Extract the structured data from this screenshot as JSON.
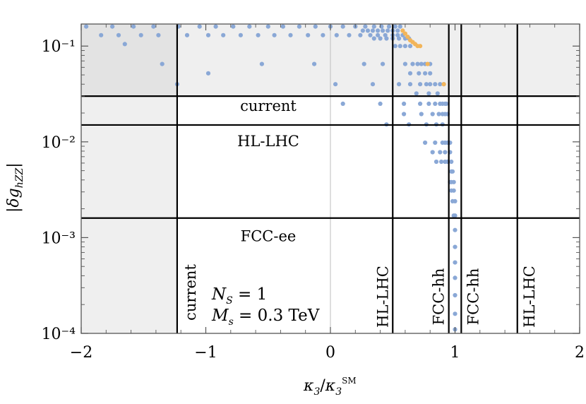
{
  "chart_data": {
    "type": "scatter",
    "xlabel": "κ₃/κ₃^SM",
    "ylabel": "|δg_hZZ|",
    "xlim": [
      -2,
      2
    ],
    "ylim": [
      0.0001,
      0.17
    ],
    "yscale": "log",
    "x_ticks": [
      {
        "value": -2,
        "label": "−2"
      },
      {
        "value": -1,
        "label": "−1"
      },
      {
        "value": 0,
        "label": "0"
      },
      {
        "value": 1,
        "label": "1"
      },
      {
        "value": 2,
        "label": "2"
      }
    ],
    "y_ticks": [
      {
        "value": 0.1,
        "label": "10⁻¹"
      },
      {
        "value": 0.01,
        "label": "10⁻²"
      },
      {
        "value": 0.001,
        "label": "10⁻³"
      },
      {
        "value": 0.0001,
        "label": "10⁻⁴"
      }
    ],
    "horizontal_bounds": [
      {
        "y": 0.03,
        "label": "current"
      },
      {
        "y": 0.015,
        "label": "HL-LHC"
      },
      {
        "y": 0.0016,
        "label": "FCC-ee"
      }
    ],
    "vertical_bounds": [
      {
        "x": -1.23,
        "label": "current"
      },
      {
        "x": 0.5,
        "label": "HL-LHC"
      },
      {
        "x": 0.95,
        "label": "FCC-hh"
      },
      {
        "x": 1.05,
        "label": "FCC-hh"
      },
      {
        "x": 1.5,
        "label": "HL-LHC"
      }
    ],
    "annotations": [
      "N_S = 1",
      "M_s = 0.3 TeV"
    ],
    "colors": {
      "blue_points": "#8aa8d6",
      "orange_points": "#f2b55a",
      "shade_light": "#efefef",
      "shade_dark": "#e3e3e3",
      "lines": "#000000"
    },
    "series": [
      {
        "color": "blue",
        "points": [
          [
            -1.96,
            0.16
          ],
          [
            -1.84,
            0.13
          ],
          [
            -1.75,
            0.16
          ],
          [
            -1.7,
            0.13
          ],
          [
            -1.65,
            0.105
          ],
          [
            -1.58,
            0.16
          ],
          [
            -1.52,
            0.13
          ],
          [
            -1.42,
            0.16
          ],
          [
            -1.38,
            0.13
          ],
          [
            -1.22,
            0.16
          ],
          [
            -1.15,
            0.13
          ],
          [
            -1.05,
            0.16
          ],
          [
            -0.98,
            0.13
          ],
          [
            -0.92,
            0.16
          ],
          [
            -0.86,
            0.13
          ],
          [
            -0.78,
            0.16
          ],
          [
            -0.72,
            0.13
          ],
          [
            -0.65,
            0.16
          ],
          [
            -0.58,
            0.13
          ],
          [
            -0.5,
            0.16
          ],
          [
            -0.45,
            0.13
          ],
          [
            -0.38,
            0.16
          ],
          [
            -0.32,
            0.13
          ],
          [
            -0.25,
            0.16
          ],
          [
            -0.18,
            0.13
          ],
          [
            -0.12,
            0.16
          ],
          [
            -0.06,
            0.13
          ],
          [
            0.0,
            0.16
          ],
          [
            0.05,
            0.13
          ],
          [
            0.1,
            0.16
          ],
          [
            0.15,
            0.13
          ],
          [
            0.2,
            0.16
          ],
          [
            0.24,
            0.13
          ],
          [
            0.28,
            0.16
          ],
          [
            0.32,
            0.13
          ],
          [
            0.35,
            0.16
          ],
          [
            0.38,
            0.13
          ],
          [
            0.41,
            0.16
          ],
          [
            0.44,
            0.13
          ],
          [
            0.47,
            0.16
          ],
          [
            0.5,
            0.13
          ],
          [
            0.52,
            0.16
          ],
          [
            0.54,
            0.13
          ],
          [
            0.56,
            0.16
          ],
          [
            0.58,
            0.13
          ],
          [
            0.26,
            0.145
          ],
          [
            0.3,
            0.145
          ],
          [
            0.34,
            0.145
          ],
          [
            0.38,
            0.145
          ],
          [
            0.42,
            0.145
          ],
          [
            0.46,
            0.145
          ],
          [
            0.5,
            0.145
          ],
          [
            0.54,
            0.145
          ],
          [
            0.35,
            0.12
          ],
          [
            0.4,
            0.12
          ],
          [
            0.45,
            0.12
          ],
          [
            0.5,
            0.12
          ],
          [
            0.55,
            0.12
          ],
          [
            0.6,
            0.12
          ],
          [
            0.63,
            0.12
          ],
          [
            0.52,
            0.1
          ],
          [
            0.56,
            0.1
          ],
          [
            0.6,
            0.1
          ],
          [
            0.64,
            0.1
          ],
          [
            -1.35,
            0.065
          ],
          [
            -0.55,
            0.065
          ],
          [
            -0.13,
            0.065
          ],
          [
            0.27,
            0.065
          ],
          [
            0.42,
            0.065
          ],
          [
            0.6,
            0.065
          ],
          [
            0.66,
            0.065
          ],
          [
            0.7,
            0.065
          ],
          [
            0.73,
            0.065
          ],
          [
            0.76,
            0.065
          ],
          [
            0.8,
            0.065
          ],
          [
            -0.98,
            0.052
          ],
          [
            0.64,
            0.052
          ],
          [
            0.71,
            0.052
          ],
          [
            0.76,
            0.052
          ],
          [
            0.8,
            0.052
          ],
          [
            -1.23,
            0.04
          ],
          [
            0.04,
            0.04
          ],
          [
            0.34,
            0.04
          ],
          [
            0.55,
            0.04
          ],
          [
            0.64,
            0.04
          ],
          [
            0.72,
            0.04
          ],
          [
            0.77,
            0.04
          ],
          [
            0.8,
            0.04
          ],
          [
            0.84,
            0.04
          ],
          [
            0.88,
            0.04
          ],
          [
            0.91,
            0.04
          ],
          [
            0.69,
            0.032
          ],
          [
            0.79,
            0.032
          ],
          [
            0.86,
            0.032
          ],
          [
            0.1,
            0.025
          ],
          [
            0.4,
            0.025
          ],
          [
            0.59,
            0.025
          ],
          [
            0.72,
            0.025
          ],
          [
            0.79,
            0.025
          ],
          [
            0.84,
            0.025
          ],
          [
            0.88,
            0.025
          ],
          [
            0.9,
            0.025
          ],
          [
            0.92,
            0.025
          ],
          [
            0.93,
            0.025
          ],
          [
            0.59,
            0.0195
          ],
          [
            0.73,
            0.0195
          ],
          [
            0.82,
            0.0195
          ],
          [
            0.87,
            0.0195
          ],
          [
            0.9,
            0.0195
          ],
          [
            0.92,
            0.0195
          ],
          [
            0.94,
            0.0195
          ],
          [
            0.45,
            0.0152
          ],
          [
            0.63,
            0.0152
          ],
          [
            0.77,
            0.0152
          ],
          [
            0.85,
            0.0152
          ],
          [
            0.9,
            0.0152
          ],
          [
            0.76,
            0.0098
          ],
          [
            0.84,
            0.0098
          ],
          [
            0.9,
            0.0098
          ],
          [
            0.92,
            0.0098
          ],
          [
            0.94,
            0.0098
          ],
          [
            0.96,
            0.0098
          ],
          [
            0.82,
            0.0078
          ],
          [
            0.88,
            0.0078
          ],
          [
            0.92,
            0.0078
          ],
          [
            0.96,
            0.0078
          ],
          [
            0.85,
            0.0062
          ],
          [
            0.89,
            0.0062
          ],
          [
            0.92,
            0.0062
          ],
          [
            0.94,
            0.0062
          ],
          [
            0.97,
            0.0062
          ],
          [
            0.97,
            0.0049
          ],
          [
            0.98,
            0.0049
          ],
          [
            0.96,
            0.0038
          ],
          [
            0.97,
            0.0038
          ],
          [
            0.99,
            0.0038
          ],
          [
            0.97,
            0.0031
          ],
          [
            0.99,
            0.0031
          ],
          [
            0.98,
            0.0024
          ],
          [
            1.0,
            0.0024
          ],
          [
            0.99,
            0.0017
          ],
          [
            1.0,
            0.0017
          ],
          [
            1.0,
            0.0012
          ],
          [
            1.0,
            0.0008
          ],
          [
            1.0,
            0.00055
          ],
          [
            1.0,
            0.00038
          ],
          [
            1.0,
            0.00025
          ],
          [
            1.0,
            0.00016
          ],
          [
            1.0,
            0.00011
          ]
        ]
      },
      {
        "color": "orange",
        "points": [
          [
            0.58,
            0.145
          ],
          [
            0.6,
            0.135
          ],
          [
            0.62,
            0.125
          ],
          [
            0.64,
            0.115
          ],
          [
            0.66,
            0.11
          ],
          [
            0.68,
            0.105
          ],
          [
            0.7,
            0.1
          ],
          [
            0.72,
            0.1
          ],
          [
            0.78,
            0.065
          ],
          [
            0.91,
            0.04
          ]
        ]
      }
    ]
  }
}
